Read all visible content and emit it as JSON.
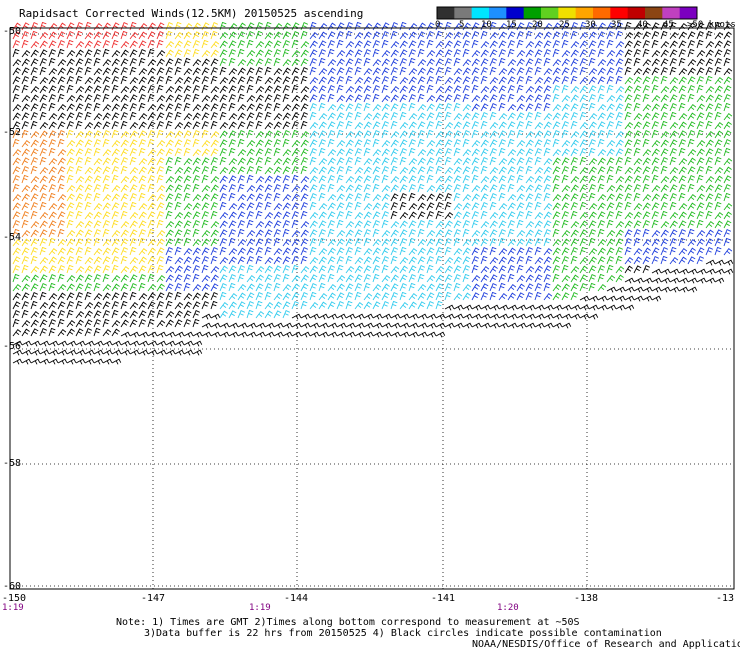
{
  "title": "Rapidsact Corrected Winds(12.5KM) 20150525 ascending",
  "legend": {
    "labels": [
      "0",
      "5",
      "10",
      "15",
      "20",
      "25",
      "30",
      "35",
      "40",
      "45",
      ">50 knots"
    ],
    "colors": [
      "#303030",
      "#7a7a7a",
      "#00e5ff",
      "#1e90ff",
      "#0000cd",
      "#00a000",
      "#60d020",
      "#f0e000",
      "#ffa500",
      "#ff6a00",
      "#ff0000",
      "#c00000",
      "#8b4513",
      "#c040c0",
      "#7b00c0"
    ]
  },
  "axes": {
    "lat_labels": [
      "-50",
      "-52",
      "-54",
      "-56",
      "-58",
      "-60"
    ],
    "lon_labels": [
      "-150",
      "-147",
      "-144",
      "-141",
      "-138",
      "-13"
    ]
  },
  "times": [
    "1:19",
    "1:19",
    "1:20"
  ],
  "note": {
    "line1": "Note: 1) Times are GMT 2)Times along bottom correspond to measurement at ~50S",
    "line2": "3)Data buffer is 22 hrs from 20150525 4) Black circles indicate possible contamination",
    "credit": "NOAA/NESDIS/Office of Research and Applications"
  },
  "wind_colors": {
    "black": "#000000",
    "cyan": "#33ccee",
    "blue": "#1f3fdd",
    "green": "#22bb22",
    "yellow": "#ffdd22",
    "orange": "#f08020",
    "red": "#ee3030"
  }
}
